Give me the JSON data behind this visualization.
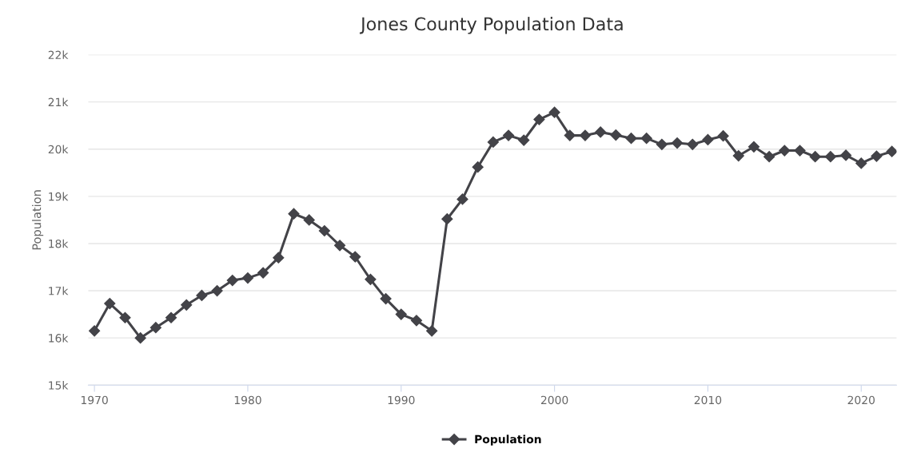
{
  "chart_data": {
    "type": "line",
    "title": "Jones County Population Data",
    "ylabel": "Population",
    "x": [
      1970,
      1971,
      1972,
      1973,
      1974,
      1975,
      1976,
      1977,
      1978,
      1979,
      1980,
      1981,
      1982,
      1983,
      1984,
      1985,
      1986,
      1987,
      1988,
      1989,
      1990,
      1991,
      1992,
      1993,
      1994,
      1995,
      1996,
      1997,
      1998,
      1999,
      2000,
      2001,
      2002,
      2003,
      2004,
      2005,
      2006,
      2007,
      2008,
      2009,
      2010,
      2011,
      2012,
      2013,
      2014,
      2015,
      2016,
      2017,
      2018,
      2019,
      2020,
      2021,
      2022
    ],
    "series": [
      {
        "name": "Population",
        "color": "#434348",
        "values": [
          16150,
          16730,
          16430,
          16000,
          16220,
          16430,
          16700,
          16900,
          17000,
          17220,
          17270,
          17380,
          17700,
          18630,
          18500,
          18270,
          17960,
          17720,
          17240,
          16830,
          16500,
          16370,
          16150,
          18520,
          18940,
          19620,
          20150,
          20290,
          20190,
          20630,
          20780,
          20290,
          20290,
          20360,
          20300,
          20230,
          20230,
          20100,
          20130,
          20100,
          20200,
          20280,
          19860,
          20050,
          19840,
          19970,
          19970,
          19840,
          19840,
          19870,
          19700,
          19850,
          19950
        ]
      }
    ],
    "xlim": [
      1969.6,
      2022.3
    ],
    "xticks": [
      1970,
      1980,
      1990,
      2000,
      2010,
      2020
    ],
    "ylim": [
      15000,
      22000
    ],
    "yticks": [
      {
        "value": 15000,
        "label": "15k"
      },
      {
        "value": 16000,
        "label": "16k"
      },
      {
        "value": 17000,
        "label": "17k"
      },
      {
        "value": 18000,
        "label": "18k"
      },
      {
        "value": 19000,
        "label": "19k"
      },
      {
        "value": 20000,
        "label": "20k"
      },
      {
        "value": 21000,
        "label": "21k"
      },
      {
        "value": 22000,
        "label": "22k"
      }
    ],
    "grid": "y",
    "legend": "bottom",
    "marker": "diamond",
    "line_style": "solid"
  }
}
